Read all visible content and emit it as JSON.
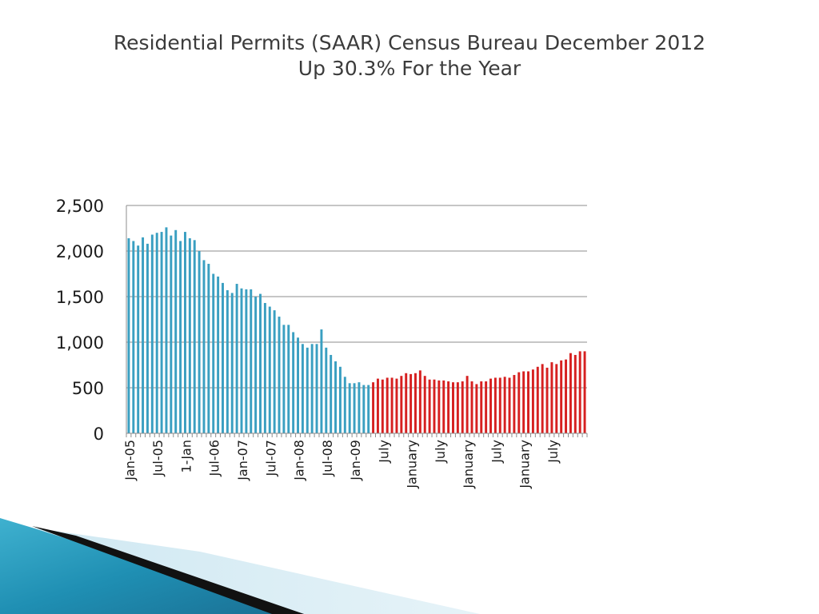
{
  "slide": {
    "title_line1": "Residential Permits (SAAR) Census Bureau December 2012",
    "title_line2": "Up 30.3%  For the Year"
  },
  "colors": {
    "series_2005_2009": "#3a9fc1",
    "series_2009_2012": "#d62020",
    "grid": "#8c8c8c",
    "text": "#1a1a1a",
    "title": "#3b3b3b"
  },
  "chart_data": {
    "type": "bar",
    "ylim": [
      0,
      2500
    ],
    "yticks": [
      0,
      500,
      1000,
      1500,
      2000,
      2500
    ],
    "ytick_labels": [
      "0",
      "500",
      "1,000",
      "1,500",
      "2,000",
      "2,500"
    ],
    "grid": true,
    "xtick_labels": [
      {
        "label": "Jan-05",
        "index": 0
      },
      {
        "label": "Jul-05",
        "index": 6
      },
      {
        "label": "1-Jan",
        "index": 12
      },
      {
        "label": "Jul-06",
        "index": 18
      },
      {
        "label": "Jan-07",
        "index": 24
      },
      {
        "label": "Jul-07",
        "index": 30
      },
      {
        "label": "Jan-08",
        "index": 36
      },
      {
        "label": "Jul-08",
        "index": 42
      },
      {
        "label": "Jan-09",
        "index": 48
      },
      {
        "label": "July",
        "index": 54
      },
      {
        "label": "January",
        "index": 60
      },
      {
        "label": "July",
        "index": 66
      },
      {
        "label": "January",
        "index": 72
      },
      {
        "label": "July",
        "index": 78
      },
      {
        "label": "January",
        "index": 84
      },
      {
        "label": "July",
        "index": 90
      }
    ],
    "series": [
      {
        "start_index": 0,
        "values": [
          2140,
          2110,
          2060,
          2150,
          2080,
          2180,
          2200,
          2210,
          2260,
          2170,
          2230,
          2110,
          2210,
          2140,
          2120,
          2000,
          1900,
          1860,
          1750,
          1720,
          1650,
          1570,
          1540,
          1640,
          1590,
          1580,
          1580,
          1500,
          1530,
          1430,
          1390,
          1350,
          1280,
          1190,
          1190,
          1110,
          1050,
          980,
          940,
          980,
          980,
          1140,
          940,
          860,
          790,
          730,
          620,
          550,
          550,
          560,
          530,
          530
        ]
      },
      {
        "start_index": 52,
        "values": [
          560,
          600,
          590,
          610,
          610,
          600,
          630,
          660,
          650,
          660,
          690,
          630,
          590,
          590,
          580,
          580,
          570,
          560,
          560,
          570,
          630,
          570,
          540,
          570,
          570,
          600,
          610,
          610,
          620,
          610,
          640,
          670,
          680,
          680,
          700,
          730,
          760,
          720,
          780,
          760,
          800,
          810,
          880,
          860,
          900,
          900
        ]
      }
    ]
  }
}
